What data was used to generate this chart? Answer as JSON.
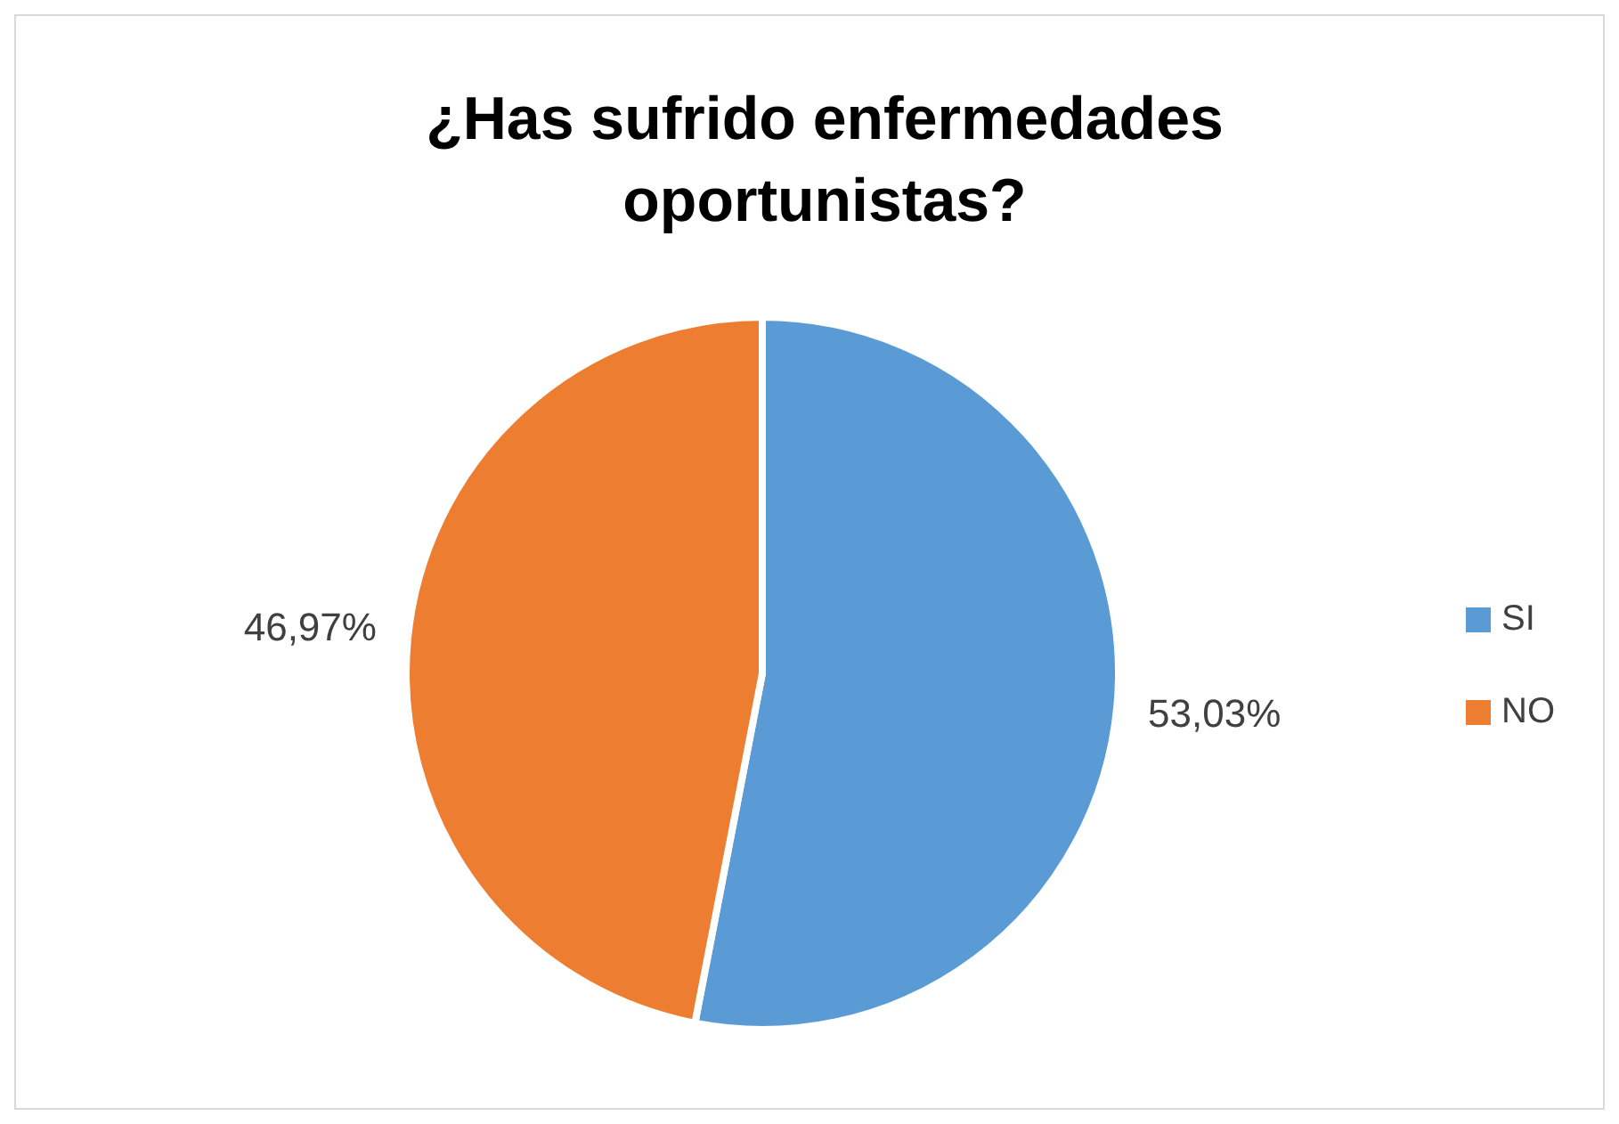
{
  "chart_data": {
    "type": "pie",
    "title": "¿Has sufrido enfermedades oportunistas?",
    "categories": [
      "SI",
      "NO"
    ],
    "values": [
      53.03,
      46.97
    ],
    "colors": [
      "#5b9bd5",
      "#ed7d31"
    ],
    "value_labels": [
      "53,03%",
      "46,97%"
    ],
    "legend": "right"
  }
}
